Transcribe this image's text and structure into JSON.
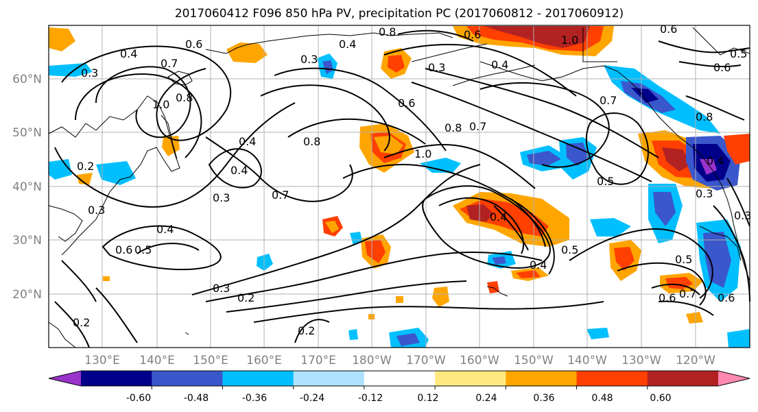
{
  "title": "2017060412 F096 850 hPa PV, precipitation PC (2017060812 - 2017060912)",
  "map": {
    "lat_labels": [
      "60°N",
      "50°N",
      "40°N",
      "30°N",
      "20°N"
    ],
    "lon_labels": [
      "130°E",
      "140°E",
      "150°E",
      "160°E",
      "170°E",
      "180°W",
      "170°W",
      "160°W",
      "150°W",
      "140°W",
      "130°W",
      "120°W"
    ],
    "contour_labels": [
      "0.4",
      "0.6",
      "0.7",
      "1.0",
      "0.8",
      "0.3",
      "0.4",
      "0.8",
      "0.6",
      "1.0",
      "0.3",
      "0.4",
      "0.6",
      "0.8",
      "0.7",
      "0.6",
      "0.7",
      "0.5",
      "0.6",
      "0.8",
      "0.3",
      "0.4",
      "0.3",
      "0.4",
      "0.8",
      "1.0",
      "0.2",
      "0.3",
      "0.7",
      "0.5",
      "0.4",
      "0.4",
      "0.6",
      "0.5",
      "0.5",
      "0.4",
      "0.3",
      "0.2",
      "0.2",
      "0.3",
      "0.5",
      "0.6",
      "0.7",
      "0.6",
      "0.4",
      "0.3",
      "0.2"
    ]
  },
  "colorbar": {
    "tick_labels": [
      "-0.60",
      "-0.48",
      "-0.36",
      "-0.24",
      "-0.12",
      "0.12",
      "0.24",
      "0.36",
      "0.48",
      "0.60"
    ],
    "colors": [
      "#9933cc",
      "#00008b",
      "#3a57cc",
      "#00bfff",
      "#aee3ff",
      "#ffffff",
      "#ffe97f",
      "#ffa500",
      "#ff4000",
      "#b22222",
      "#ff88b0"
    ]
  },
  "colors": {
    "grid": "#b0b0b0",
    "axis_label": "#808080",
    "contour": "#000000",
    "coast": "#000000"
  }
}
